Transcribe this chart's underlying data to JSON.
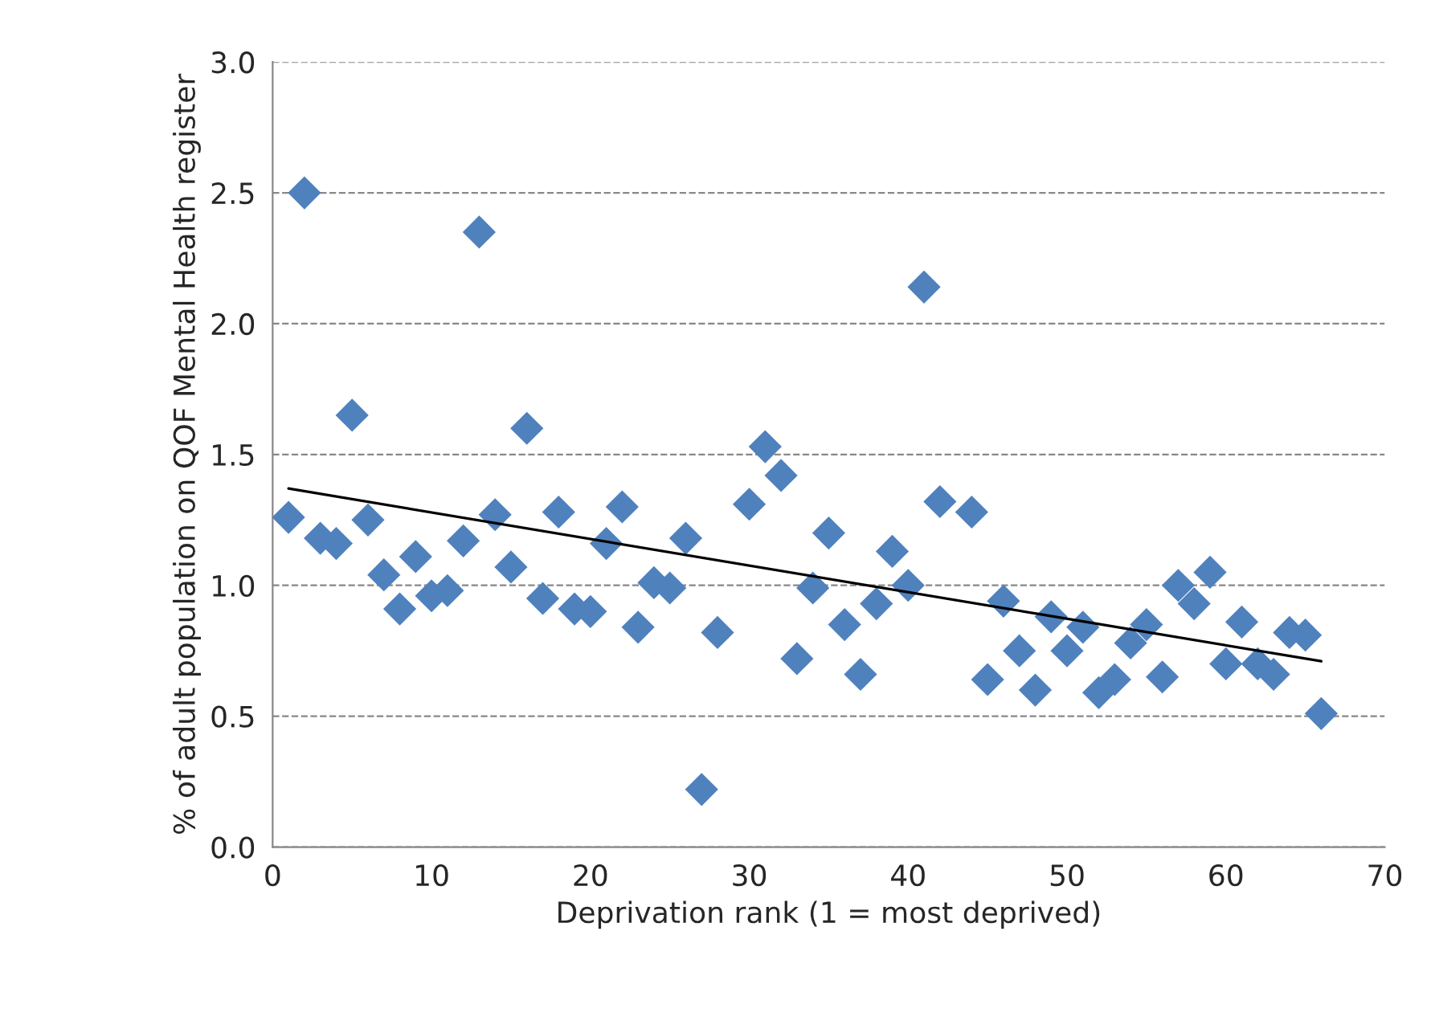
{
  "chart_data": {
    "type": "scatter",
    "xlabel": "Deprivation rank (1 = most deprived)",
    "ylabel": "% of adult population on QOF Mental Health register",
    "series": [
      {
        "color": "#4f81bd",
        "marker": "diamond",
        "x": [
          1,
          2,
          3,
          4,
          5,
          6,
          7,
          8,
          9,
          10,
          11,
          12,
          13,
          14,
          15,
          16,
          17,
          18,
          19,
          20,
          21,
          22,
          23,
          24,
          25,
          26,
          27,
          28,
          30,
          31,
          32,
          33,
          34,
          35,
          36,
          37,
          38,
          39,
          40,
          41,
          42,
          44,
          45,
          46,
          47,
          48,
          49,
          50,
          51,
          52,
          53,
          54,
          55,
          56,
          57,
          58,
          59,
          60,
          61,
          62,
          63,
          64,
          65,
          66
        ],
        "values": [
          1.26,
          2.5,
          1.18,
          1.16,
          1.65,
          1.25,
          1.04,
          0.91,
          1.11,
          0.96,
          0.98,
          1.17,
          2.35,
          1.27,
          1.07,
          1.6,
          0.95,
          1.28,
          0.91,
          0.9,
          1.16,
          1.3,
          0.84,
          1.01,
          0.99,
          1.18,
          0.22,
          0.82,
          1.31,
          1.53,
          1.42,
          0.72,
          0.99,
          1.2,
          0.85,
          0.66,
          0.93,
          1.13,
          1.0,
          2.14,
          1.32,
          1.28,
          0.64,
          0.94,
          0.75,
          0.6,
          0.88,
          0.75,
          0.84,
          0.59,
          0.64,
          0.78,
          0.85,
          0.65,
          1.0,
          0.93,
          1.05,
          0.7,
          0.86,
          0.7,
          0.66,
          0.82,
          0.81,
          0.51
        ]
      },
      {
        "type": "line",
        "color": "#000000",
        "line_style": "solid",
        "x": [
          1,
          66
        ],
        "values": [
          1.37,
          0.71
        ]
      }
    ],
    "xlim": [
      0,
      70
    ],
    "xticks": [
      0,
      10,
      20,
      30,
      40,
      50,
      60,
      70
    ],
    "ylim": [
      0,
      3
    ],
    "yticks": [
      {
        "value": 0,
        "label": "0.0"
      },
      {
        "value": 0.5,
        "label": "0.5"
      },
      {
        "value": 1,
        "label": "1.0"
      },
      {
        "value": 1.5,
        "label": "1.5"
      },
      {
        "value": 2,
        "label": "2.0"
      },
      {
        "value": 2.5,
        "label": "2.5"
      },
      {
        "value": 3,
        "label": "3.0"
      }
    ],
    "grid": "y",
    "legend": false
  }
}
